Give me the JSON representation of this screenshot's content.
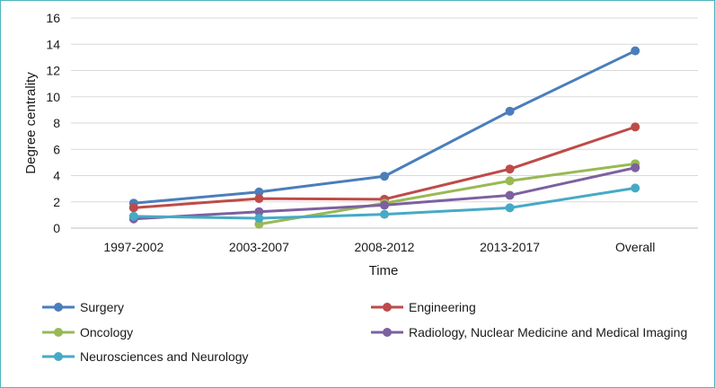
{
  "chart_data": {
    "type": "line",
    "title": "",
    "xlabel": "Time",
    "ylabel": "Degree centrality",
    "categories": [
      "1997-2002",
      "2003-2007",
      "2008-2012",
      "2013-2017",
      "Overall"
    ],
    "ylim": [
      0,
      16
    ],
    "yticks": [
      0,
      2,
      4,
      6,
      8,
      10,
      12,
      14,
      16
    ],
    "grid": true,
    "legend_position": "bottom",
    "series": [
      {
        "name": "Surgery",
        "color": "#4a7ebb",
        "values": [
          1.9,
          2.75,
          3.95,
          8.9,
          13.5
        ]
      },
      {
        "name": "Engineering",
        "color": "#be4b48",
        "values": [
          1.55,
          2.25,
          2.2,
          4.5,
          7.7
        ]
      },
      {
        "name": "Oncology",
        "color": "#98b954",
        "values": [
          null,
          0.3,
          1.9,
          3.6,
          4.9
        ]
      },
      {
        "name": "Radiology, Nuclear Medicine and Medical Imaging",
        "color": "#7d60a0",
        "values": [
          0.7,
          1.25,
          1.75,
          2.5,
          4.6
        ]
      },
      {
        "name": "Neurosciences and Neurology",
        "color": "#46aac5",
        "values": [
          0.9,
          0.75,
          1.05,
          1.55,
          3.05
        ]
      }
    ]
  }
}
